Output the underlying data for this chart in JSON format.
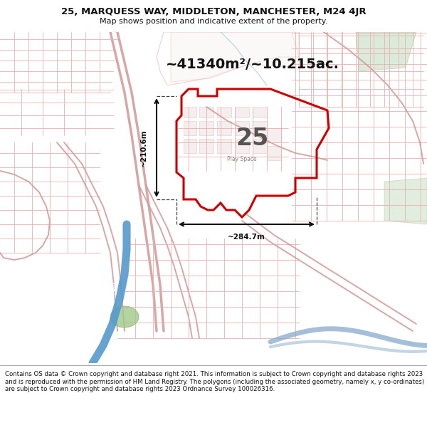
{
  "title_line1": "25, MARQUESS WAY, MIDDLETON, MANCHESTER, M24 4JR",
  "title_line2": "Map shows position and indicative extent of the property.",
  "area_text": "~41340m²/~10.215ac.",
  "parcel_label": "25",
  "sub_label": "Play Space",
  "dim_v": "~210.6m",
  "dim_h": "~284.7m",
  "footer_text": "Contains OS data © Crown copyright and database right 2021. This information is subject to Crown copyright and database rights 2023 and is reproduced with the permission of HM Land Registry. The polygons (including the associated geometry, namely x, y co-ordinates) are subject to Crown copyright and database rights 2023 Ordnance Survey 100026316.",
  "map_bg": "#faf8f5",
  "parcel_edge": "#cc0000",
  "parcel_fill": "#ffffff",
  "road_pink": "#e8b0b0",
  "road_dark": "#d09898",
  "blue_road": "#5599cc",
  "blue_water": "#88aacc",
  "green_fill": "#c5dfc0",
  "title_fs1": 9.5,
  "title_fs2": 8.0,
  "area_fs": 14,
  "label_fs": 24,
  "sublabel_fs": 5.5,
  "dim_fs": 7.5,
  "footer_fs": 6.2,
  "fig_w": 6.0,
  "fig_h": 6.25,
  "dpi": 100
}
